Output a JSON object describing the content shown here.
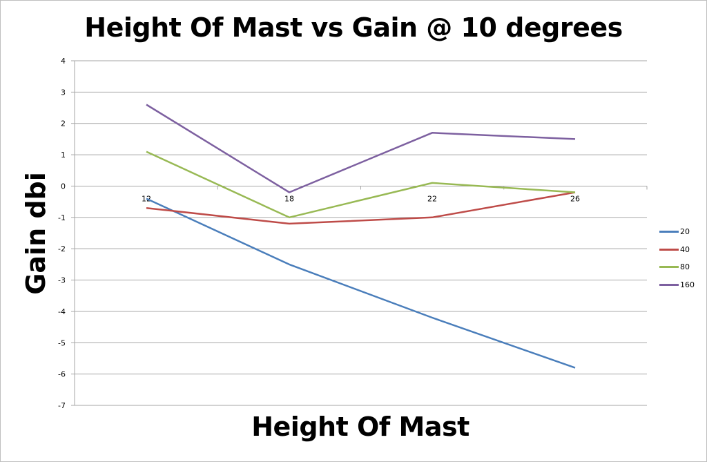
{
  "chart_data": {
    "type": "line",
    "title": "Height Of Mast vs Gain @ 10 degrees",
    "xlabel": "Height Of Mast",
    "ylabel": "Gain dbi",
    "categories": [
      "12",
      "18",
      "22",
      "26"
    ],
    "series": [
      {
        "name": "20",
        "color": "#4a7ebb",
        "values": [
          -0.4,
          -2.5,
          -4.2,
          -5.8
        ]
      },
      {
        "name": "40",
        "color": "#be4b48",
        "values": [
          -0.7,
          -1.2,
          -1.0,
          -0.2
        ]
      },
      {
        "name": "80",
        "color": "#98b954",
        "values": [
          1.1,
          -1.0,
          0.1,
          -0.2
        ]
      },
      {
        "name": "160",
        "color": "#7d60a0",
        "values": [
          2.6,
          -0.2,
          1.7,
          1.5
        ]
      }
    ],
    "yticks": [
      "4",
      "3",
      "2",
      "1",
      "0",
      "-1",
      "-2",
      "-3",
      "-4",
      "-5",
      "-6",
      "-7"
    ],
    "ylim": [
      -7,
      4
    ],
    "grid": true,
    "legend_position": "right"
  }
}
